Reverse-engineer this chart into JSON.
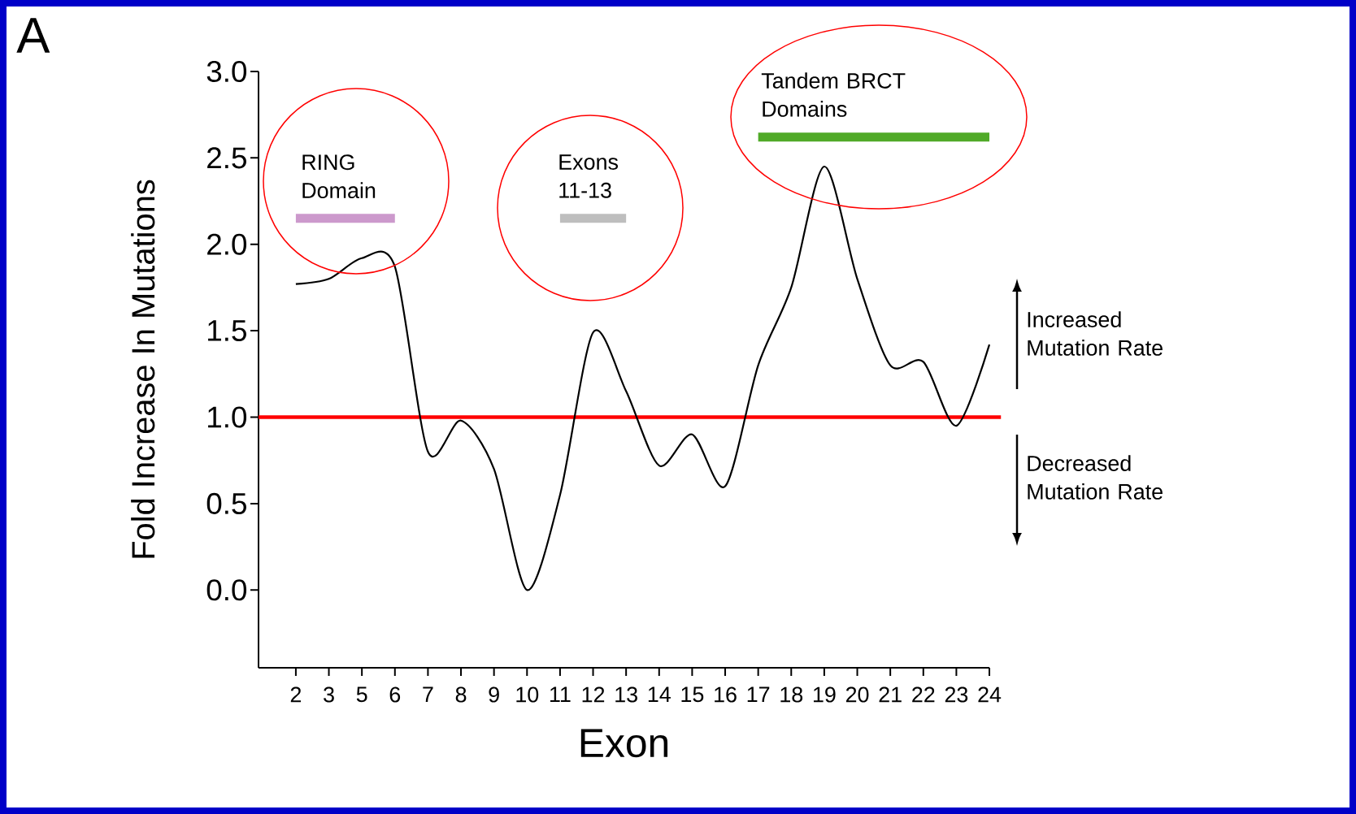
{
  "chart_data": {
    "type": "line",
    "xlabel": "Exon",
    "ylabel": "Fold Increase In Mutations",
    "categories": [
      "2",
      "3",
      "5",
      "6",
      "7",
      "8",
      "9",
      "10",
      "11",
      "12",
      "13",
      "14",
      "15",
      "16",
      "17",
      "18",
      "19",
      "20",
      "21",
      "22",
      "23",
      "24"
    ],
    "series": [
      {
        "color": "#000000",
        "values": [
          1.77,
          1.8,
          1.92,
          1.87,
          0.8,
          0.98,
          0.7,
          0.0,
          0.55,
          1.49,
          1.15,
          0.72,
          0.9,
          0.6,
          1.3,
          1.75,
          2.45,
          1.8,
          1.3,
          1.32,
          0.95,
          1.42
        ]
      },
      {
        "name": "RING Domain",
        "color": "#cc99cc",
        "values": [
          2.15,
          2.15,
          2.15,
          2.15,
          null,
          null,
          null,
          null,
          null,
          null,
          null,
          null,
          null,
          null,
          null,
          null,
          null,
          null,
          null,
          null,
          null,
          null
        ]
      },
      {
        "name": "Exons 11-13",
        "color": "#bebebe",
        "values": [
          null,
          null,
          null,
          null,
          null,
          null,
          null,
          null,
          2.15,
          2.15,
          2.15,
          null,
          null,
          null,
          null,
          null,
          null,
          null,
          null,
          null,
          null,
          null
        ]
      },
      {
        "name": "Tandem BRCT Domains",
        "color": "#50aa28",
        "values": [
          null,
          null,
          null,
          null,
          null,
          null,
          null,
          null,
          null,
          null,
          null,
          null,
          null,
          null,
          2.62,
          2.62,
          2.62,
          2.62,
          2.62,
          2.62,
          2.62,
          2.62
        ]
      }
    ],
    "ylim": [
      -0.45,
      3.0
    ],
    "yticks": [
      {
        "value": 0,
        "label": "0.0"
      },
      {
        "value": 0.5,
        "label": "0.5"
      },
      {
        "value": 1,
        "label": "1.0"
      },
      {
        "value": 1.5,
        "label": "1.5"
      },
      {
        "value": 2,
        "label": "2.0"
      },
      {
        "value": 2.5,
        "label": "2.5"
      },
      {
        "value": 3,
        "label": "3.0"
      }
    ],
    "ref_lines": [
      {
        "axis": "y",
        "value": 1,
        "color": "#ff0000"
      }
    ],
    "marker": "none",
    "line_style": "solid",
    "annotations": [
      "A",
      "Increased Mutation Rate",
      "Decreased Mutation Rate"
    ]
  }
}
